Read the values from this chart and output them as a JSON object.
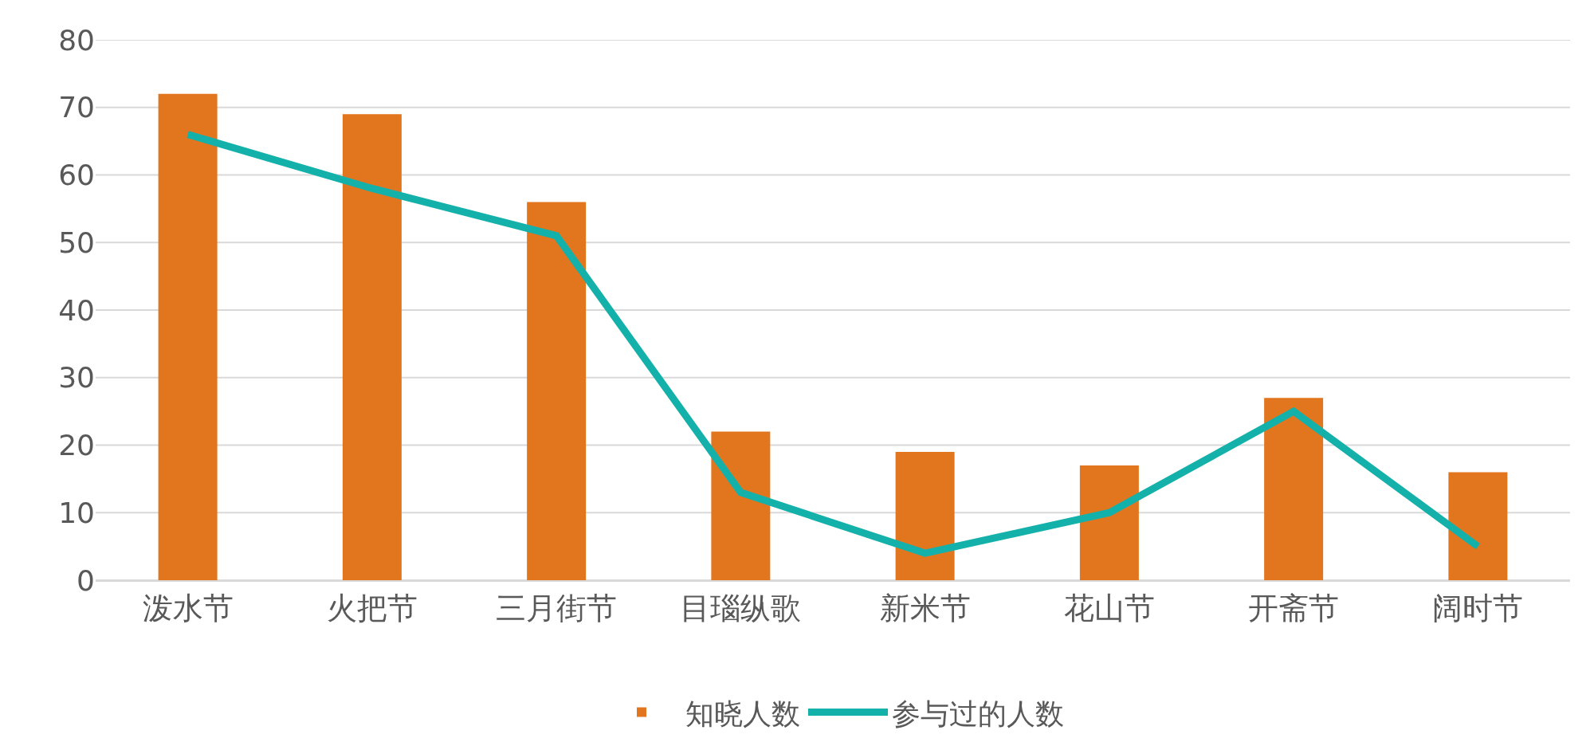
{
  "chart_data": {
    "type": "bar",
    "categories": [
      "泼水节",
      "火把节",
      "三月街节",
      "目瑙纵歌",
      "新米节",
      "花山节",
      "开斋节",
      "阔时节"
    ],
    "series": [
      {
        "name": "知晓人数",
        "color": "#e2761f",
        "values": [
          72,
          69,
          56,
          22,
          19,
          17,
          27,
          16
        ]
      },
      {
        "name": "参与过的人数",
        "type": "line",
        "color": "#14b1ab",
        "values": [
          66,
          58,
          51,
          13,
          4,
          10,
          25,
          5
        ]
      }
    ],
    "ylim": [
      0,
      80
    ],
    "yticks": [
      0,
      10,
      20,
      30,
      40,
      50,
      60,
      70,
      80
    ],
    "grid": "y",
    "legend": "bottom",
    "marker": "none",
    "line_style": "solid"
  }
}
